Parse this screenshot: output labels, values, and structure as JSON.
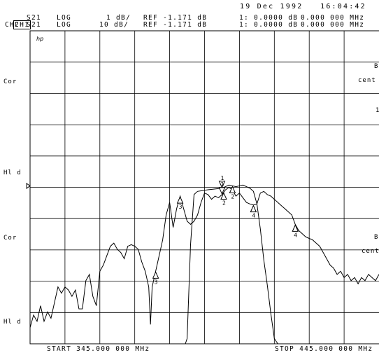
{
  "header": {
    "date": "19 Dec 1992",
    "time": "16:04:42",
    "channels": [
      {
        "id": "CH1",
        "param": "S21",
        "format": "LOG",
        "scale": "1 dB/",
        "ref": "REF -1.171 dB",
        "marker": "1: 0.0000 dB",
        "freq": "0.000 000 MHz"
      },
      {
        "id": "CH2",
        "param": "S21",
        "format": "LOG",
        "scale": "10 dB/",
        "ref": "REF -1.171 dB",
        "marker": "1: 0.0000 dB",
        "freq": "0.000 000 MHz"
      }
    ]
  },
  "side_labels": {
    "cor_top": "Cor",
    "hld_top": "Hl d",
    "cor_bottom": "Cor",
    "hld_bottom": "Hl d"
  },
  "right_labels": {
    "b1": "B",
    "cent1": "cent",
    "one": "1",
    "b2": "B",
    "cent2": "cent"
  },
  "logo": "hp",
  "footer": {
    "start": "START 345.000 000 MHz",
    "stop": "STOP 445.000 000 MHz"
  },
  "chart_data": {
    "type": "line",
    "xlim": [
      345,
      445
    ],
    "x_divisions": 10,
    "y_divisions": 10,
    "grid": true,
    "series": [
      {
        "channel": "CH1",
        "scale_db_per_div": 1,
        "ref_db": -1.171,
        "ref_position_div": 5,
        "points": [
          [
            345,
            -15
          ],
          [
            388,
            -15
          ],
          [
            389.5,
            -9
          ],
          [
            390,
            -6
          ],
          [
            391,
            -3
          ],
          [
            392,
            -1.4
          ],
          [
            393,
            -1.3
          ],
          [
            396,
            -1.25
          ],
          [
            400,
            -1.2
          ],
          [
            402,
            -1.1
          ],
          [
            404,
            -1.15
          ],
          [
            406,
            -1.1
          ],
          [
            408,
            -1.2
          ],
          [
            409,
            -1.3
          ],
          [
            410,
            -1.7
          ],
          [
            411,
            -2.5
          ],
          [
            412,
            -3.5
          ],
          [
            413,
            -4.3
          ],
          [
            414,
            -5.2
          ],
          [
            415,
            -6
          ],
          [
            416,
            -6.8
          ],
          [
            417,
            -7.5
          ],
          [
            418,
            -8.2
          ],
          [
            419,
            -9
          ],
          [
            420,
            -9.8
          ],
          [
            422,
            -11
          ],
          [
            424,
            -13
          ],
          [
            426,
            -15
          ],
          [
            445,
            -15
          ]
        ]
      },
      {
        "channel": "CH2",
        "scale_db_per_div": 10,
        "ref_db": -1.171,
        "ref_position_div": 5,
        "points": [
          [
            345,
            -46
          ],
          [
            346,
            -42
          ],
          [
            347,
            -44
          ],
          [
            348,
            -39
          ],
          [
            349,
            -44
          ],
          [
            350,
            -41
          ],
          [
            351,
            -43
          ],
          [
            352,
            -38
          ],
          [
            353,
            -33
          ],
          [
            354,
            -35
          ],
          [
            355,
            -33
          ],
          [
            356,
            -34
          ],
          [
            357,
            -36
          ],
          [
            358,
            -34
          ],
          [
            359,
            -40
          ],
          [
            360,
            -40
          ],
          [
            361,
            -31
          ],
          [
            362,
            -29
          ],
          [
            363,
            -36
          ],
          [
            364,
            -39
          ],
          [
            365,
            -28
          ],
          [
            366,
            -26
          ],
          [
            367,
            -23
          ],
          [
            368,
            -20
          ],
          [
            369,
            -19
          ],
          [
            370,
            -21
          ],
          [
            371,
            -22
          ],
          [
            372,
            -24
          ],
          [
            373,
            -20
          ],
          [
            374,
            -19.5
          ],
          [
            375,
            -20
          ],
          [
            376,
            -21
          ],
          [
            377,
            -25
          ],
          [
            378,
            -28
          ],
          [
            379,
            -33
          ],
          [
            379.5,
            -45
          ],
          [
            380,
            -33
          ],
          [
            381,
            -28
          ],
          [
            382,
            -23
          ],
          [
            383,
            -18
          ],
          [
            384,
            -10
          ],
          [
            385,
            -6
          ],
          [
            386,
            -14
          ],
          [
            387,
            -8
          ],
          [
            388,
            -4
          ],
          [
            389,
            -8
          ],
          [
            390,
            -12
          ],
          [
            391,
            -13
          ],
          [
            392,
            -12
          ],
          [
            393,
            -10
          ],
          [
            394,
            -6
          ],
          [
            395,
            -3
          ],
          [
            396,
            -3.5
          ],
          [
            397,
            -5
          ],
          [
            398,
            -4
          ],
          [
            399,
            -4.5
          ],
          [
            400,
            -3.5
          ],
          [
            401,
            -2
          ],
          [
            402,
            -1.2
          ],
          [
            403,
            -2
          ],
          [
            404,
            -4
          ],
          [
            405,
            -3
          ],
          [
            406,
            -4.5
          ],
          [
            407,
            -6
          ],
          [
            408,
            -6.5
          ],
          [
            409,
            -6.8
          ],
          [
            410,
            -6.5
          ],
          [
            411,
            -3
          ],
          [
            412,
            -2.5
          ],
          [
            413,
            -3.5
          ],
          [
            414,
            -4
          ],
          [
            415,
            -5
          ],
          [
            416,
            -6
          ],
          [
            417,
            -7
          ],
          [
            418,
            -8
          ],
          [
            419,
            -9
          ],
          [
            420,
            -10
          ],
          [
            421,
            -13
          ],
          [
            422,
            -15
          ],
          [
            423,
            -16
          ],
          [
            424,
            -17
          ],
          [
            425,
            -17.5
          ],
          [
            426,
            -18
          ],
          [
            427,
            -19
          ],
          [
            428,
            -20
          ],
          [
            429,
            -22
          ],
          [
            430,
            -24
          ],
          [
            431,
            -26
          ],
          [
            432,
            -27
          ],
          [
            433,
            -29
          ],
          [
            434,
            -28
          ],
          [
            435,
            -30
          ],
          [
            436,
            -29
          ],
          [
            437,
            -31
          ],
          [
            438,
            -30
          ],
          [
            439,
            -32
          ],
          [
            440,
            -30
          ],
          [
            441,
            -31
          ],
          [
            442,
            -29
          ],
          [
            443,
            -30
          ],
          [
            444,
            -31
          ],
          [
            445,
            -29
          ]
        ]
      }
    ],
    "markers": [
      {
        "label": "1",
        "channel": "CH1",
        "x": 400,
        "style": "down"
      },
      {
        "label": "2",
        "channel": "CH1",
        "x": 403,
        "style": "up"
      },
      {
        "label": "1",
        "channel": "CH2",
        "x": 400,
        "style": "down"
      },
      {
        "label": "2",
        "channel": "CH2",
        "x": 400.5,
        "style": "up"
      },
      {
        "label": "3",
        "channel": "CH2",
        "x": 381,
        "style": "up"
      },
      {
        "label": "3",
        "channel": "CH2",
        "x": 388,
        "style": "up"
      },
      {
        "label": "4",
        "channel": "CH2",
        "x": 409,
        "style": "up"
      },
      {
        "label": "4",
        "channel": "CH2",
        "x": 421,
        "style": "up"
      }
    ]
  }
}
